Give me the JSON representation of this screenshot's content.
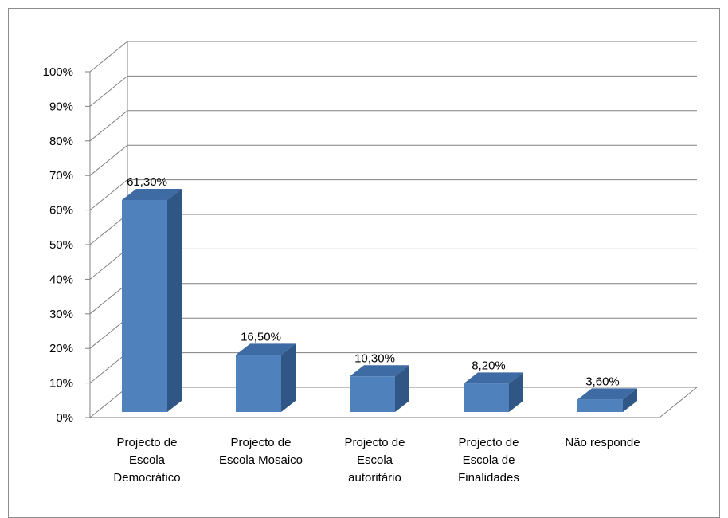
{
  "chart_data": {
    "type": "bar",
    "style": "3d-column",
    "categories": [
      [
        "Projecto de",
        "Escola",
        "Democrático"
      ],
      [
        "Projecto de",
        "Escola Mosaico"
      ],
      [
        "Projecto de",
        "Escola",
        "autoritário"
      ],
      [
        "Projecto de",
        "Escola de",
        "Finalidades"
      ],
      [
        "Não responde"
      ]
    ],
    "values": [
      61.3,
      16.5,
      10.3,
      8.2,
      3.6
    ],
    "data_labels": [
      "61,30%",
      "16,50%",
      "10,30%",
      "8,20%",
      "3,60%"
    ],
    "y_ticks": [
      "0%",
      "10%",
      "20%",
      "30%",
      "40%",
      "50%",
      "60%",
      "70%",
      "80%",
      "90%",
      "100%"
    ],
    "ylim": [
      0,
      100
    ],
    "grid": true,
    "legend": "none",
    "colors": {
      "bar_front": "#4f81bd",
      "bar_side": "#2f5685",
      "bar_top": "#3e6ba3",
      "grid": "#808080",
      "frame": "#8c8c8c"
    }
  }
}
